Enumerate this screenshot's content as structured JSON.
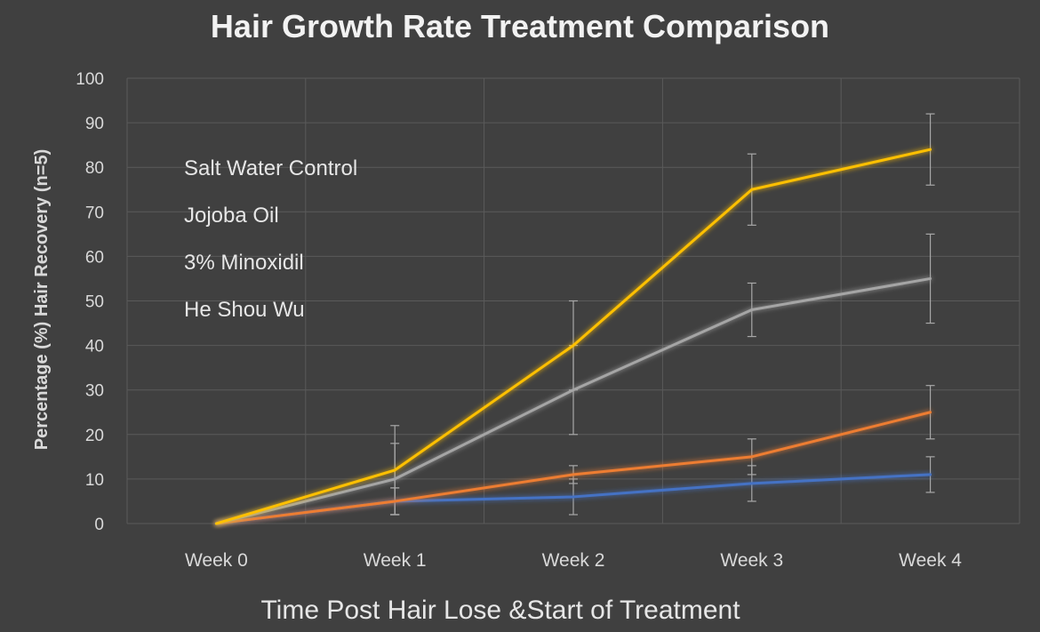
{
  "chart_data": {
    "type": "line",
    "title": "Hair Growth Rate Treatment Comparison",
    "xlabel": "Time Post Hair Lose &Start of Treatment",
    "ylabel": "Percentage (%) Hair Recovery (n=5)",
    "categories": [
      "Week 0",
      "Week 1",
      "Week 2",
      "Week 3",
      "Week 4"
    ],
    "ylim": [
      0,
      100
    ],
    "yticks": [
      "0",
      "10",
      "20",
      "30",
      "40",
      "50",
      "60",
      "70",
      "80",
      "90",
      "100"
    ],
    "grid": true,
    "legend_position": "top-left",
    "series": [
      {
        "name": "Salt Water Control",
        "color": "#4472c4",
        "values": [
          0,
          5,
          6,
          9,
          11
        ],
        "error": [
          0,
          3,
          4,
          4,
          4
        ]
      },
      {
        "name": "Jojoba Oil",
        "color": "#ed7d31",
        "values": [
          0,
          5,
          11,
          15,
          25
        ],
        "error": [
          0,
          3,
          2,
          4,
          6
        ]
      },
      {
        "name": "3% Minoxidil",
        "color": "#a5a5a5",
        "values": [
          0,
          10,
          30,
          48,
          55
        ],
        "error": [
          0,
          8,
          10,
          6,
          10
        ]
      },
      {
        "name": "He Shou Wu",
        "color": "#ffc000",
        "values": [
          0,
          12,
          40,
          75,
          84
        ],
        "error": [
          0,
          10,
          10,
          8,
          8
        ]
      }
    ]
  }
}
